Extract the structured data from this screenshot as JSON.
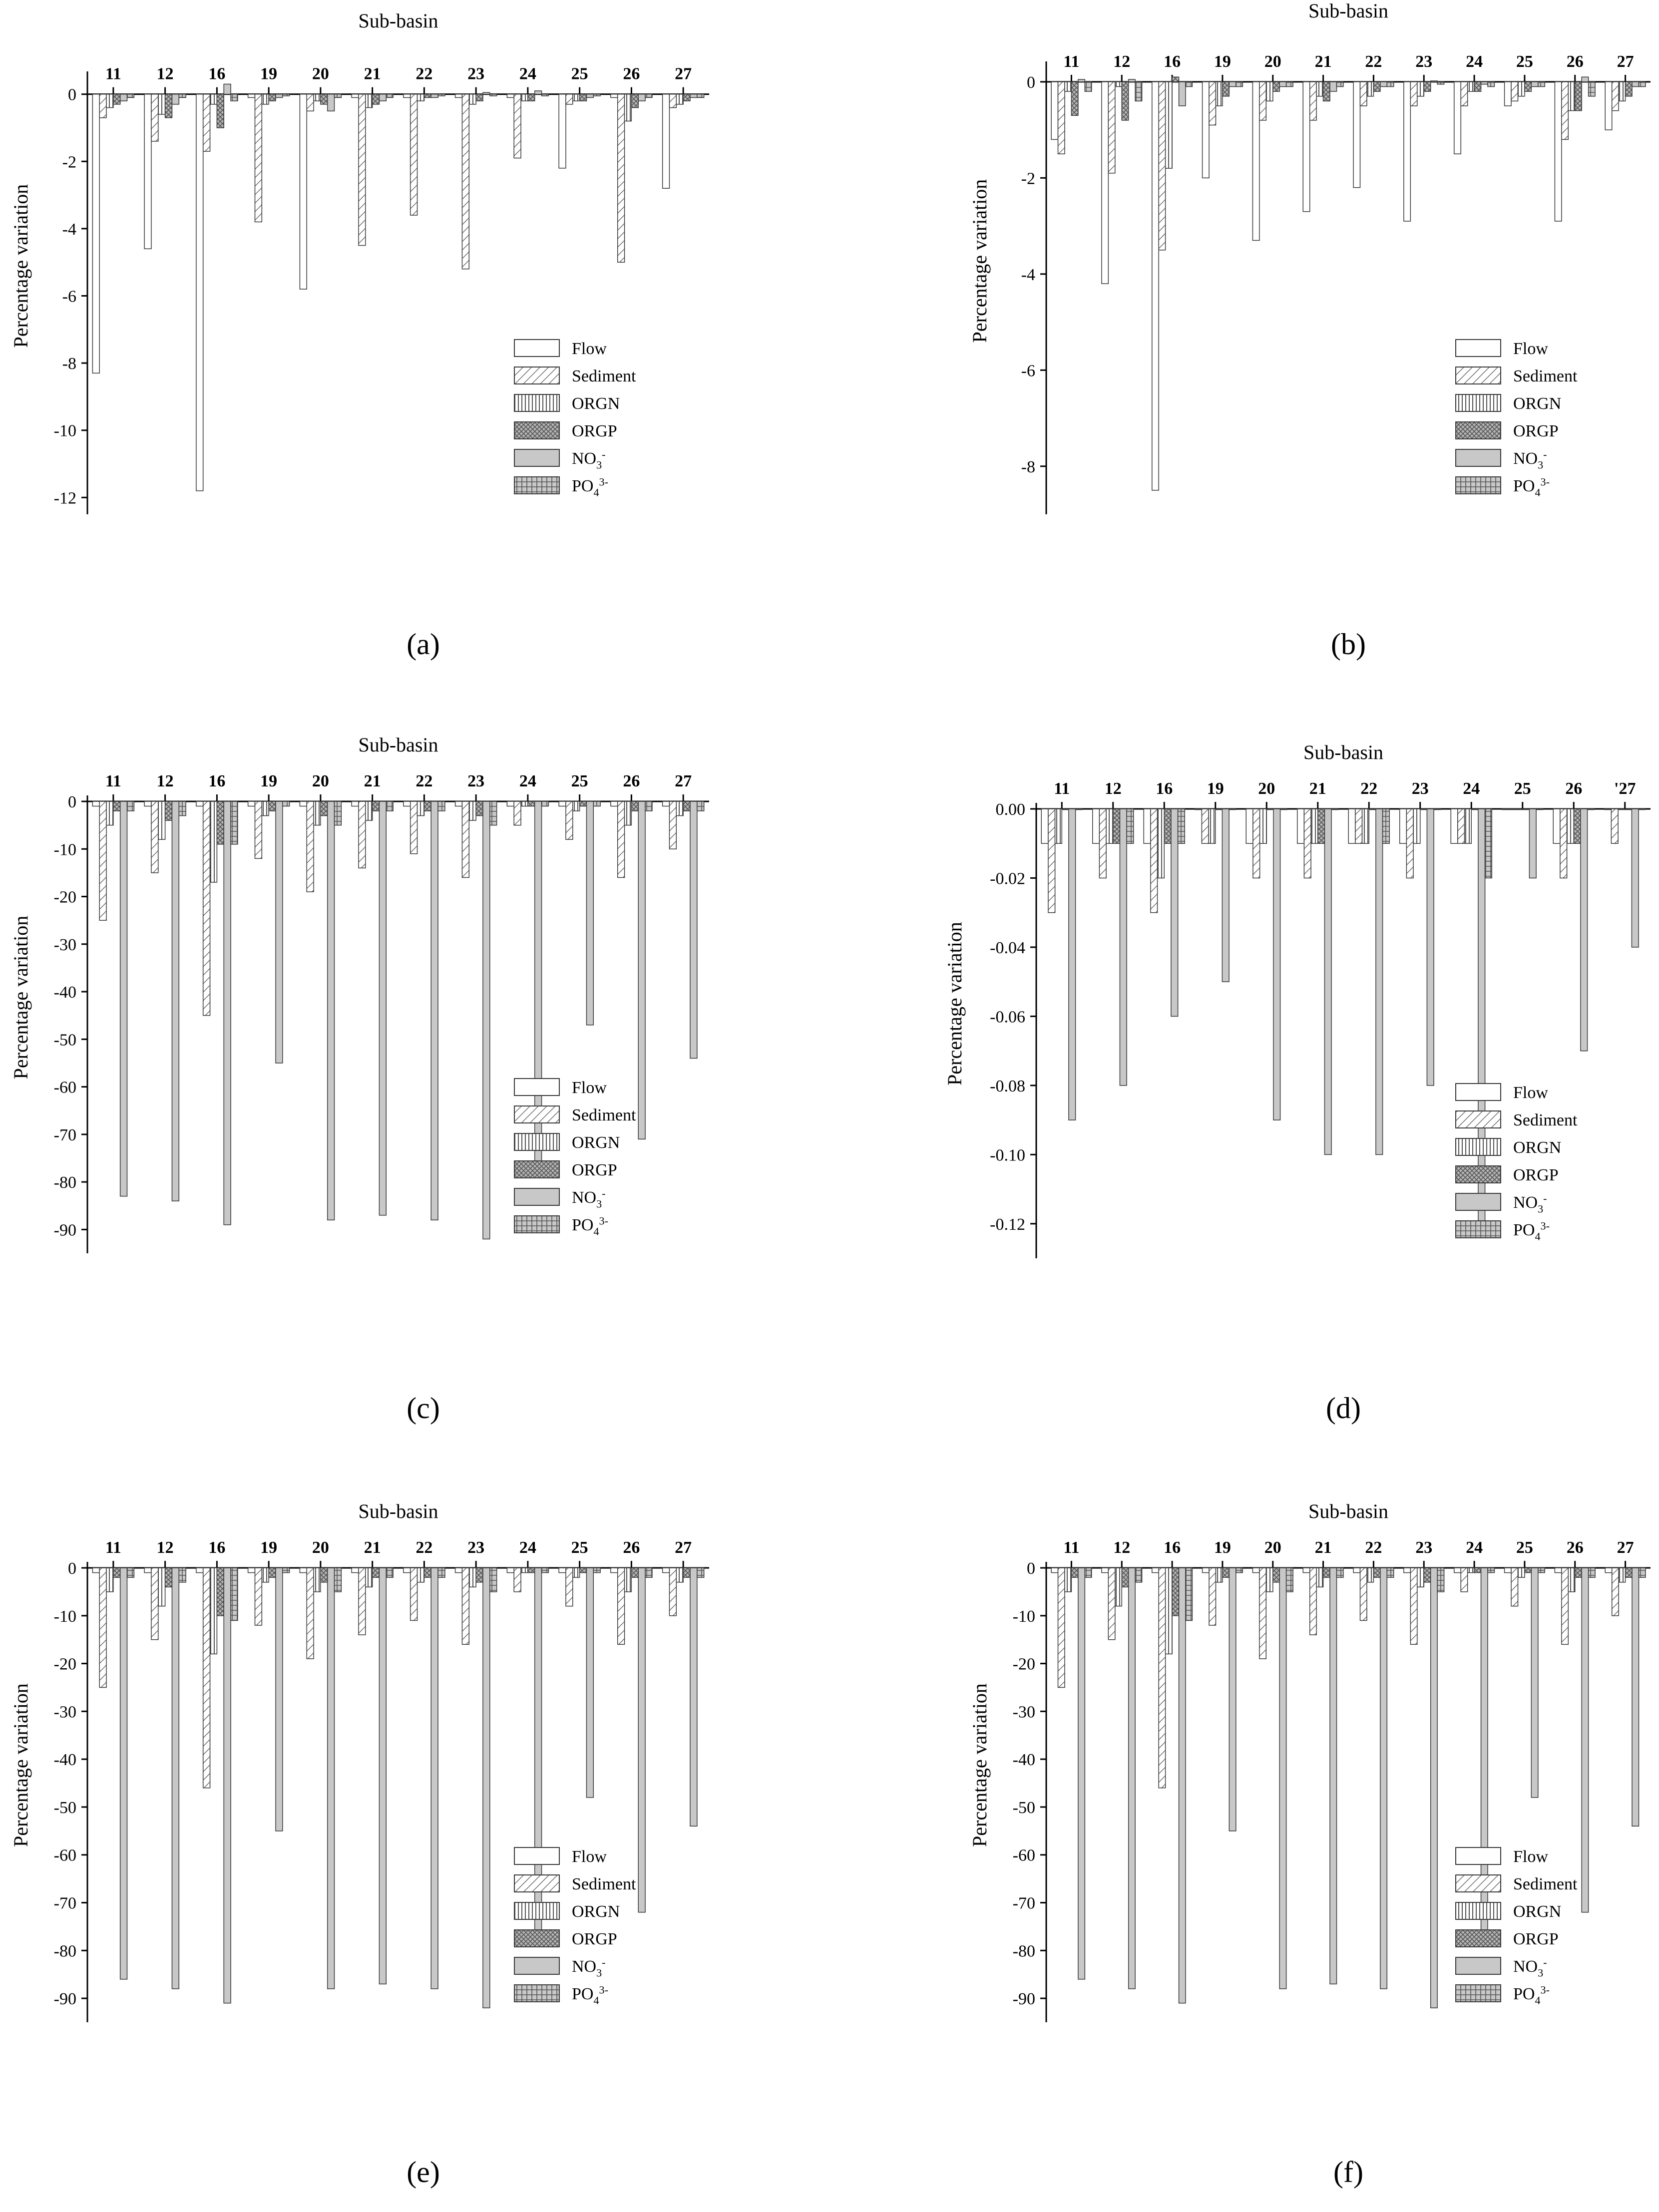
{
  "figure": {
    "colors": {
      "axis": "#000000",
      "bar_stroke": "#3a3a3a",
      "bar_fill": "#ffffff",
      "solid_fill": "#c8c8c8",
      "hatch": "#555555"
    },
    "series_patterns": [
      "white",
      "diag",
      "vert",
      "cross",
      "solid",
      "grid"
    ]
  },
  "chart_data": [
    {
      "type": "bar",
      "panel_label": "a",
      "title": "Sub-basin",
      "ylabel": "Percentage variation",
      "xlabel": "",
      "categories": [
        "11",
        "12",
        "16",
        "19",
        "20",
        "21",
        "22",
        "23",
        "24",
        "25",
        "26",
        "27"
      ],
      "ylim": [
        -12.5,
        0.5
      ],
      "yticks": [
        0,
        -2,
        -4,
        -6,
        -8,
        -10,
        -12
      ],
      "ytick_labels": [
        "0",
        "-2",
        "-4",
        "-6",
        "-8",
        "-10",
        "-12"
      ],
      "legend_position": "lower-right",
      "series": [
        {
          "name": "Flow",
          "values": [
            -8.3,
            -4.6,
            -11.8,
            -0.1,
            -5.8,
            -0.1,
            -0.1,
            -0.1,
            -0.1,
            -2.2,
            -0.1,
            -2.8
          ]
        },
        {
          "name": "Sediment",
          "values": [
            -0.7,
            -1.4,
            -1.7,
            -3.8,
            -0.5,
            -4.5,
            -3.6,
            -5.2,
            -1.9,
            -0.3,
            -5.0,
            -0.4
          ]
        },
        {
          "name": "ORGN",
          "values": [
            -0.4,
            -0.6,
            -0.3,
            -0.3,
            -0.2,
            -0.4,
            -0.2,
            -0.3,
            -0.2,
            -0.2,
            -0.8,
            -0.3
          ]
        },
        {
          "name": "ORGP",
          "values": [
            -0.3,
            -0.7,
            -1.0,
            -0.2,
            -0.3,
            -0.3,
            -0.1,
            -0.2,
            -0.2,
            -0.2,
            -0.4,
            -0.2
          ]
        },
        {
          "name": "NO3-",
          "values": [
            -0.2,
            -0.3,
            0.3,
            -0.1,
            -0.5,
            -0.2,
            -0.1,
            0.05,
            0.1,
            -0.1,
            -0.2,
            -0.1
          ]
        },
        {
          "name": "PO43-",
          "values": [
            -0.1,
            -0.1,
            -0.2,
            -0.05,
            -0.1,
            -0.1,
            -0.05,
            -0.05,
            -0.05,
            -0.05,
            -0.1,
            -0.1
          ]
        }
      ]
    },
    {
      "type": "bar",
      "panel_label": "b",
      "title": "Sub-basin",
      "ylabel": "Percentage variation",
      "xlabel": "",
      "categories": [
        "11",
        "12",
        "16",
        "19",
        "20",
        "21",
        "22",
        "23",
        "24",
        "25",
        "26",
        "27"
      ],
      "ylim": [
        -9,
        0.3
      ],
      "yticks": [
        0,
        -2,
        -4,
        -6,
        -8
      ],
      "ytick_labels": [
        "0",
        "-2",
        "-4",
        "-6",
        "-8"
      ],
      "legend_position": "lower-right",
      "series": [
        {
          "name": "Flow",
          "values": [
            -1.2,
            -4.2,
            -8.5,
            -2.0,
            -3.3,
            -2.7,
            -2.2,
            -2.9,
            -1.5,
            -0.5,
            -2.9,
            -1.0
          ]
        },
        {
          "name": "Sediment",
          "values": [
            -1.5,
            -1.9,
            -3.5,
            -0.9,
            -0.8,
            -0.8,
            -0.5,
            -0.5,
            -0.5,
            -0.4,
            -1.2,
            -0.6
          ]
        },
        {
          "name": "ORGN",
          "values": [
            -0.2,
            -0.1,
            -1.8,
            -0.5,
            -0.4,
            -0.3,
            -0.3,
            -0.3,
            -0.2,
            -0.3,
            -0.6,
            -0.4
          ]
        },
        {
          "name": "ORGP",
          "values": [
            -0.7,
            -0.8,
            0.1,
            -0.3,
            -0.2,
            -0.4,
            -0.2,
            -0.2,
            -0.2,
            -0.2,
            -0.6,
            -0.3
          ]
        },
        {
          "name": "NO3-",
          "values": [
            0.05,
            0.05,
            -0.5,
            -0.1,
            -0.1,
            -0.2,
            -0.1,
            0.02,
            -0.05,
            -0.1,
            0.1,
            -0.1
          ]
        },
        {
          "name": "PO43-",
          "values": [
            -0.2,
            -0.4,
            -0.1,
            -0.1,
            -0.1,
            -0.1,
            -0.1,
            -0.05,
            -0.1,
            -0.1,
            -0.3,
            -0.1
          ]
        }
      ]
    },
    {
      "type": "bar",
      "panel_label": "c",
      "title": "Sub-basin",
      "ylabel": "Percentage variation",
      "xlabel": "",
      "categories": [
        "11",
        "12",
        "16",
        "19",
        "20",
        "21",
        "22",
        "23",
        "24",
        "25",
        "26",
        "27"
      ],
      "ylim": [
        -95,
        0
      ],
      "yticks": [
        0,
        -10,
        -20,
        -30,
        -40,
        -50,
        -60,
        -70,
        -80,
        -90
      ],
      "ytick_labels": [
        "0",
        "-10",
        "-20",
        "-30",
        "-40",
        "-50",
        "-60",
        "-70",
        "-80",
        "-90"
      ],
      "legend_position": "lower-right",
      "series": [
        {
          "name": "Flow",
          "values": [
            -1,
            -1,
            -1,
            -1,
            -1,
            -1,
            -1,
            -1,
            -1,
            -1,
            -1,
            -1
          ]
        },
        {
          "name": "Sediment",
          "values": [
            -25,
            -15,
            -45,
            -12,
            -19,
            -14,
            -11,
            -16,
            -5,
            -8,
            -16,
            -10
          ]
        },
        {
          "name": "ORGN",
          "values": [
            -5,
            -8,
            -17,
            -3,
            -5,
            -4,
            -3,
            -4,
            -1,
            -2,
            -5,
            -3
          ]
        },
        {
          "name": "ORGP",
          "values": [
            -2,
            -4,
            -9,
            -2,
            -3,
            -2,
            -2,
            -3,
            -1,
            -1,
            -2,
            -2
          ]
        },
        {
          "name": "NO3-",
          "values": [
            -83,
            -84,
            -89,
            -55,
            -88,
            -87,
            -88,
            -92,
            -79,
            -47,
            -71,
            -54
          ]
        },
        {
          "name": "PO43-",
          "values": [
            -2,
            -3,
            -9,
            -1,
            -5,
            -2,
            -2,
            -5,
            -1,
            -1,
            -2,
            -2
          ]
        }
      ]
    },
    {
      "type": "bar",
      "panel_label": "d",
      "title": "Sub-basin",
      "ylabel": "Percentage variation",
      "xlabel": "",
      "categories": [
        "11",
        "12",
        "16",
        "19",
        "20",
        "21",
        "22",
        "23",
        "24",
        "25",
        "26",
        "'27"
      ],
      "ylim": [
        -0.13,
        0
      ],
      "yticks": [
        0,
        -0.02,
        -0.04,
        -0.06,
        -0.08,
        -0.1,
        -0.12
      ],
      "ytick_labels": [
        "0.00",
        "-0.02",
        "-0.04",
        "-0.06",
        "-0.08",
        "-0.10",
        "-0.12"
      ],
      "legend_position": "lower-right",
      "series": [
        {
          "name": "Flow",
          "values": [
            -0.01,
            -0.01,
            -0.01,
            0,
            -0.01,
            -0.01,
            -0.01,
            -0.01,
            -0.01,
            0,
            -0.01,
            0
          ]
        },
        {
          "name": "Sediment",
          "values": [
            -0.03,
            -0.02,
            -0.03,
            -0.01,
            -0.02,
            -0.02,
            -0.01,
            -0.02,
            -0.01,
            0,
            -0.02,
            -0.01
          ]
        },
        {
          "name": "ORGN",
          "values": [
            -0.01,
            -0.01,
            -0.02,
            -0.01,
            -0.01,
            -0.01,
            -0.01,
            -0.01,
            -0.01,
            0,
            -0.01,
            0
          ]
        },
        {
          "name": "ORGP",
          "values": [
            0,
            -0.01,
            -0.01,
            0,
            0,
            -0.01,
            0,
            0,
            0,
            0,
            -0.01,
            0
          ]
        },
        {
          "name": "NO3-",
          "values": [
            -0.09,
            -0.08,
            -0.06,
            -0.05,
            -0.09,
            -0.1,
            -0.1,
            -0.08,
            -0.12,
            -0.02,
            -0.07,
            -0.04
          ]
        },
        {
          "name": "PO43-",
          "values": [
            0,
            -0.01,
            -0.01,
            0,
            0,
            0,
            -0.01,
            0,
            -0.02,
            0,
            0,
            0
          ]
        }
      ]
    },
    {
      "type": "bar",
      "panel_label": "e",
      "title": "Sub-basin",
      "ylabel": "Percentage variation",
      "xlabel": "",
      "categories": [
        "11",
        "12",
        "16",
        "19",
        "20",
        "21",
        "22",
        "23",
        "24",
        "25",
        "26",
        "27"
      ],
      "ylim": [
        -95,
        0
      ],
      "yticks": [
        0,
        -10,
        -20,
        -30,
        -40,
        -50,
        -60,
        -70,
        -80,
        -90
      ],
      "ytick_labels": [
        "0",
        "-10",
        "-20",
        "-30",
        "-40",
        "-50",
        "-60",
        "-70",
        "-80",
        "-90"
      ],
      "legend_position": "lower-right",
      "series": [
        {
          "name": "Flow",
          "values": [
            -1,
            -1,
            -1,
            -1,
            -1,
            -1,
            -1,
            -1,
            -1,
            -1,
            -1,
            -1
          ]
        },
        {
          "name": "Sediment",
          "values": [
            -25,
            -15,
            -46,
            -12,
            -19,
            -14,
            -11,
            -16,
            -5,
            -8,
            -16,
            -10
          ]
        },
        {
          "name": "ORGN",
          "values": [
            -5,
            -8,
            -18,
            -3,
            -5,
            -4,
            -3,
            -4,
            -1,
            -2,
            -5,
            -3
          ]
        },
        {
          "name": "ORGP",
          "values": [
            -2,
            -4,
            -10,
            -2,
            -3,
            -2,
            -2,
            -3,
            -1,
            -1,
            -2,
            -2
          ]
        },
        {
          "name": "NO3-",
          "values": [
            -86,
            -88,
            -91,
            -55,
            -88,
            -87,
            -88,
            -92,
            -79,
            -48,
            -72,
            -54
          ]
        },
        {
          "name": "PO43-",
          "values": [
            -2,
            -3,
            -11,
            -1,
            -5,
            -2,
            -2,
            -5,
            -1,
            -1,
            -2,
            -2
          ]
        }
      ]
    },
    {
      "type": "bar",
      "panel_label": "f",
      "title": "Sub-basin",
      "ylabel": "Percentage variation",
      "xlabel": "",
      "categories": [
        "11",
        "12",
        "16",
        "19",
        "20",
        "21",
        "22",
        "23",
        "24",
        "25",
        "26",
        "27"
      ],
      "ylim": [
        -95,
        0
      ],
      "yticks": [
        0,
        -10,
        -20,
        -30,
        -40,
        -50,
        -60,
        -70,
        -80,
        -90
      ],
      "ytick_labels": [
        "0",
        "-10",
        "-20",
        "-30",
        "-40",
        "-50",
        "-60",
        "-70",
        "-80",
        "-90"
      ],
      "legend_position": "lower-right",
      "series": [
        {
          "name": "Flow",
          "values": [
            -1,
            -1,
            -1,
            -1,
            -1,
            -1,
            -1,
            -1,
            -1,
            -1,
            -1,
            -1
          ]
        },
        {
          "name": "Sediment",
          "values": [
            -25,
            -15,
            -46,
            -12,
            -19,
            -14,
            -11,
            -16,
            -5,
            -8,
            -16,
            -10
          ]
        },
        {
          "name": "ORGN",
          "values": [
            -5,
            -8,
            -18,
            -3,
            -5,
            -4,
            -3,
            -4,
            -1,
            -2,
            -5,
            -3
          ]
        },
        {
          "name": "ORGP",
          "values": [
            -2,
            -4,
            -10,
            -2,
            -3,
            -2,
            -2,
            -3,
            -1,
            -1,
            -2,
            -2
          ]
        },
        {
          "name": "NO3-",
          "values": [
            -86,
            -88,
            -91,
            -55,
            -88,
            -87,
            -88,
            -92,
            -79,
            -48,
            -72,
            -54
          ]
        },
        {
          "name": "PO43-",
          "values": [
            -2,
            -3,
            -11,
            -1,
            -5,
            -2,
            -2,
            -5,
            -1,
            -1,
            -2,
            -2
          ]
        }
      ]
    }
  ]
}
